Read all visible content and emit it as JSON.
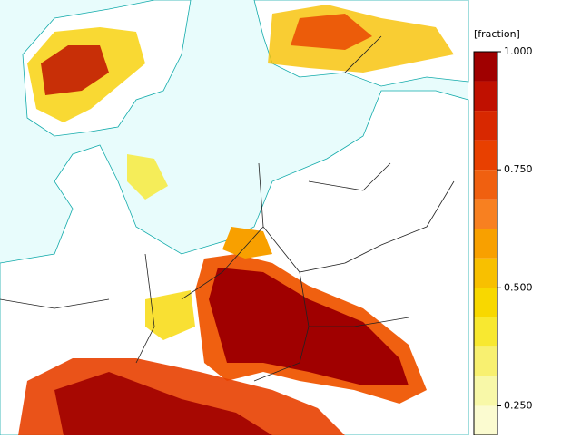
{
  "legend": {
    "title": "[fraction]",
    "lim": [
      0.1875,
      1.0
    ],
    "ticks": [
      {
        "value": 1.0,
        "label": "1.000"
      },
      {
        "value": 0.75,
        "label": "0.750"
      },
      {
        "value": 0.5,
        "label": "0.500"
      },
      {
        "value": 0.25,
        "label": "0.250"
      }
    ],
    "bounds": [
      1.0,
      0.9375,
      0.875,
      0.8125,
      0.75,
      0.6875,
      0.625,
      0.5625,
      0.5,
      0.4375,
      0.375,
      0.3125,
      0.25,
      0.1875
    ],
    "colors": [
      "#a00000",
      "#c01000",
      "#d82800",
      "#e84000",
      "#f06010",
      "#f88020",
      "#f8a000",
      "#f8c000",
      "#f8d800",
      "#f8e830",
      "#f8f070",
      "#f8f8a8",
      "#fbfbd0"
    ]
  }
}
